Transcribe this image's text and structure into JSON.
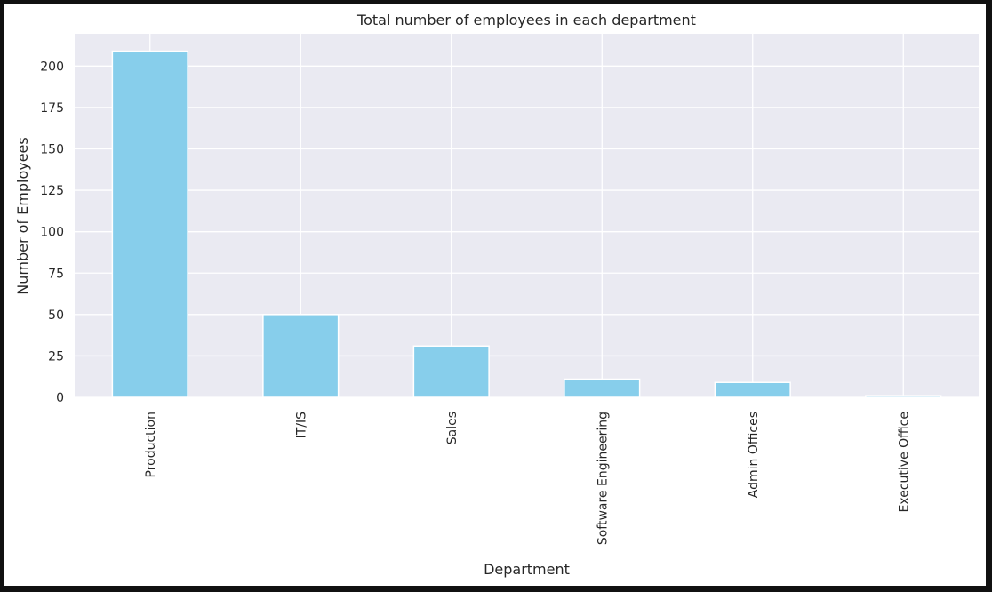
{
  "chart_data": {
    "type": "bar",
    "title": "Total number of employees in each department",
    "xlabel": "Department",
    "ylabel": "Number of Employees",
    "categories": [
      "Production",
      "IT/IS",
      "Sales",
      "Software Engineering",
      "Admin Offices",
      "Executive Office"
    ],
    "values": [
      209,
      50,
      31,
      11,
      9,
      1
    ],
    "ylim": [
      0,
      219.5
    ],
    "yticks": [
      0,
      25,
      50,
      75,
      100,
      125,
      150,
      175,
      200
    ],
    "grid": true,
    "legend": "none",
    "bar_color": "#87CEEB",
    "plot_background": "#EAEAF2",
    "grid_color": "#FFFFFF"
  }
}
